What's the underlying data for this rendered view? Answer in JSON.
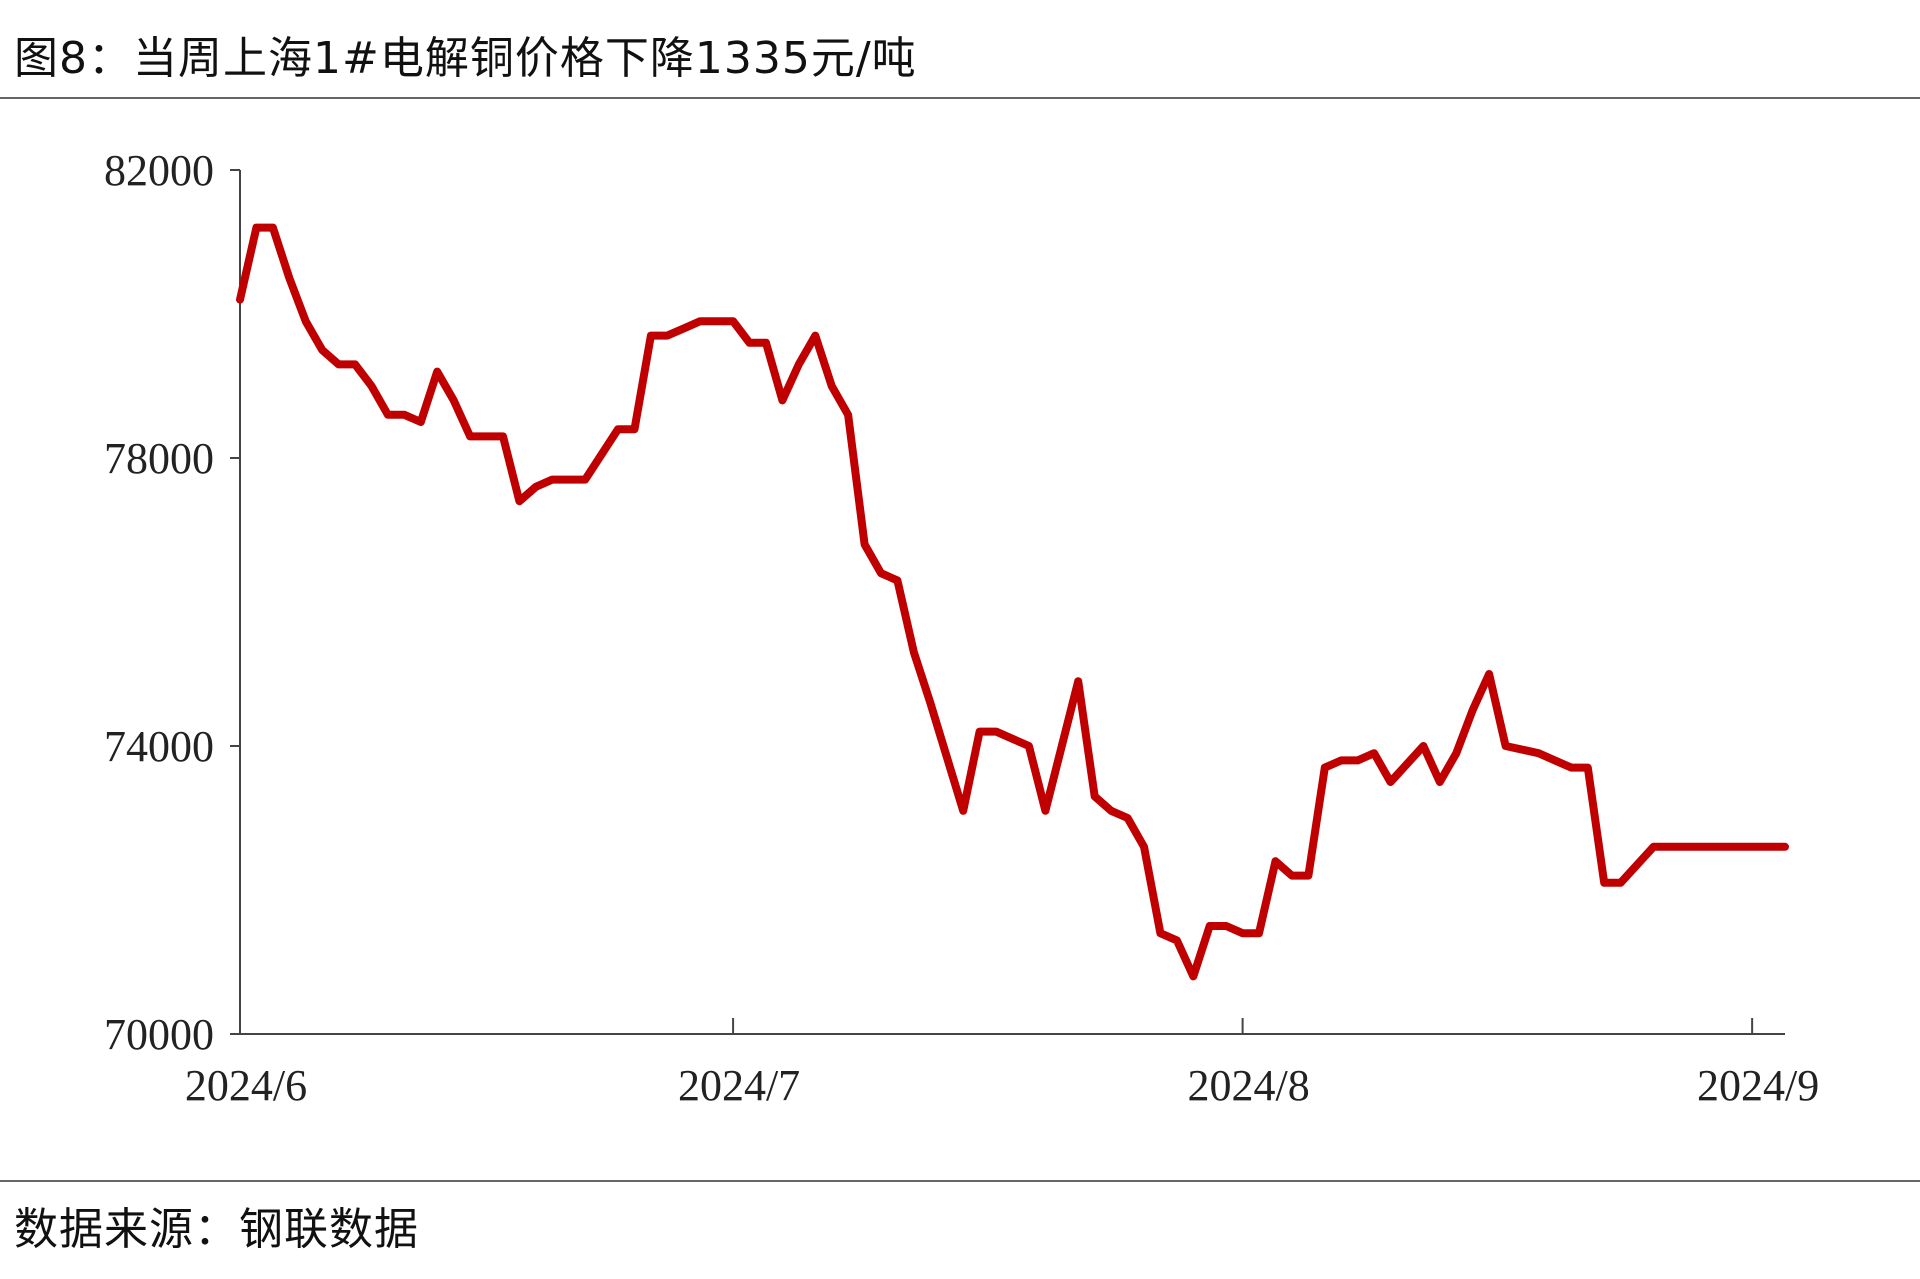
{
  "header": {
    "title": "图8：当周上海1#电解铜价格下降1335元/吨"
  },
  "footer": {
    "source": "数据来源：钢联数据"
  },
  "chart_data": {
    "type": "line",
    "title": "图8：当周上海1#电解铜价格下降1335元/吨",
    "xlabel": "",
    "ylabel": "",
    "ylim": [
      70000,
      82000
    ],
    "yticks": [
      70000,
      74000,
      78000,
      82000
    ],
    "yticklabels": [
      "70000",
      "74000",
      "78000",
      "82000"
    ],
    "xticklabels": [
      "2024/6",
      "2024/7",
      "2024/8",
      "2024/9"
    ],
    "xtick_dates": [
      "2024-06-01",
      "2024-07-01",
      "2024-08-01",
      "2024-09-01"
    ],
    "xlim": [
      "2024-06-01",
      "2024-09-03"
    ],
    "grid": false,
    "line_color": "#c00000",
    "series": [
      {
        "name": "",
        "x": [
          "2024-06-01",
          "2024-06-02",
          "2024-06-03",
          "2024-06-04",
          "2024-06-05",
          "2024-06-06",
          "2024-06-07",
          "2024-06-08",
          "2024-06-09",
          "2024-06-10",
          "2024-06-11",
          "2024-06-12",
          "2024-06-13",
          "2024-06-14",
          "2024-06-15",
          "2024-06-17",
          "2024-06-18",
          "2024-06-19",
          "2024-06-20",
          "2024-06-21",
          "2024-06-22",
          "2024-06-24",
          "2024-06-25",
          "2024-06-26",
          "2024-06-27",
          "2024-06-28",
          "2024-06-29",
          "2024-07-01",
          "2024-07-02",
          "2024-07-03",
          "2024-07-04",
          "2024-07-05",
          "2024-07-06",
          "2024-07-07",
          "2024-07-08",
          "2024-07-09",
          "2024-07-10",
          "2024-07-11",
          "2024-07-12",
          "2024-07-13",
          "2024-07-15",
          "2024-07-16",
          "2024-07-17",
          "2024-07-18",
          "2024-07-19",
          "2024-07-20",
          "2024-07-22",
          "2024-07-23",
          "2024-07-24",
          "2024-07-25",
          "2024-07-26",
          "2024-07-27",
          "2024-07-28",
          "2024-07-29",
          "2024-07-30",
          "2024-07-31",
          "2024-08-01",
          "2024-08-02",
          "2024-08-03",
          "2024-08-04",
          "2024-08-05",
          "2024-08-06",
          "2024-08-07",
          "2024-08-08",
          "2024-08-09",
          "2024-08-10",
          "2024-08-12",
          "2024-08-13",
          "2024-08-14",
          "2024-08-15",
          "2024-08-16",
          "2024-08-17",
          "2024-08-19",
          "2024-08-20",
          "2024-08-21",
          "2024-08-22",
          "2024-08-23",
          "2024-08-24",
          "2024-08-26",
          "2024-08-27",
          "2024-08-28",
          "2024-08-29",
          "2024-08-30",
          "2024-08-31",
          "2024-09-02",
          "2024-09-03"
        ],
        "values": [
          80200,
          81200,
          81200,
          80500,
          79900,
          79500,
          79300,
          79300,
          79000,
          78600,
          78600,
          78500,
          79200,
          78800,
          78300,
          78300,
          77400,
          77600,
          77700,
          77700,
          77700,
          78400,
          78400,
          79700,
          79700,
          79800,
          79900,
          79900,
          79600,
          79600,
          78800,
          79300,
          79700,
          79000,
          78600,
          76800,
          76400,
          76300,
          75300,
          74600,
          73100,
          74200,
          74200,
          74100,
          74000,
          73100,
          74900,
          73300,
          73100,
          73000,
          72600,
          71400,
          71300,
          70800,
          71500,
          71500,
          71400,
          71400,
          72400,
          72200,
          72200,
          73700,
          73800,
          73800,
          73900,
          73500,
          74000,
          73500,
          73900,
          74500,
          75000,
          74000,
          73900,
          73800,
          73700,
          73700,
          72100,
          72100,
          72600,
          72600,
          72600,
          72600,
          72600,
          72600,
          72600,
          72600
        ]
      }
    ]
  }
}
